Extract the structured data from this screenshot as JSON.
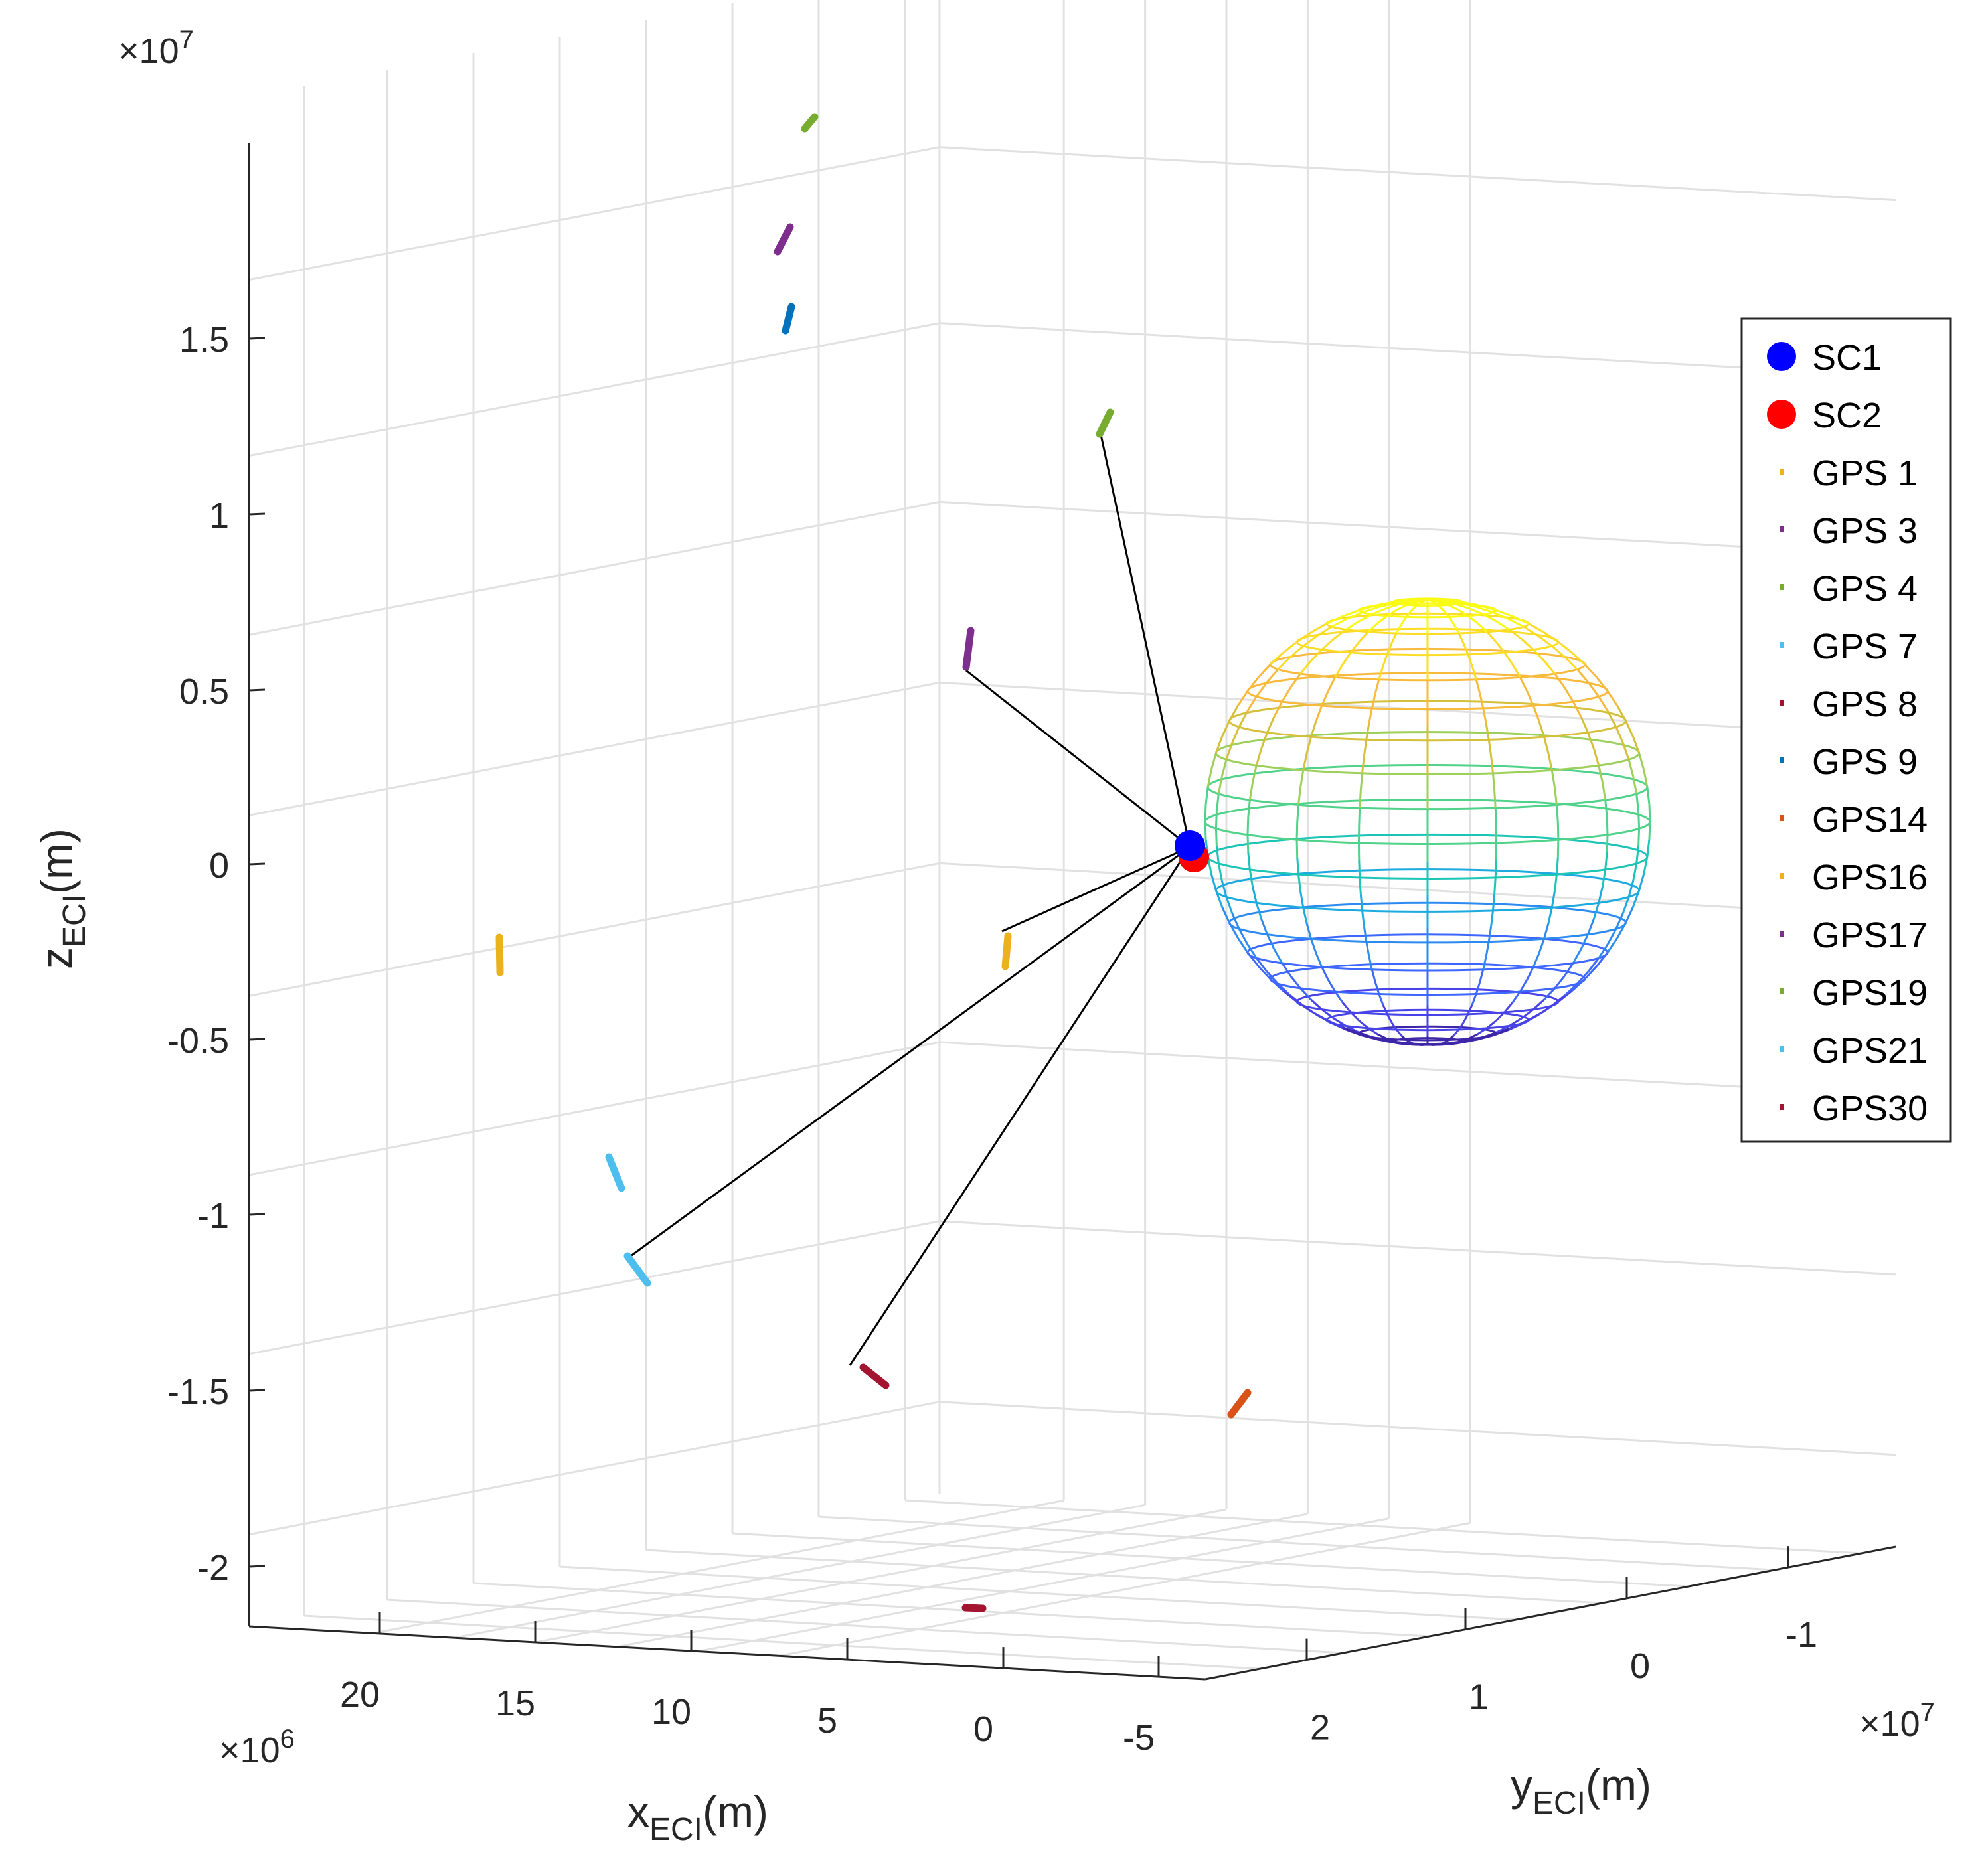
{
  "chart_data": {
    "type": "scatter3d",
    "title": "",
    "xlabel": {
      "base": "x",
      "sub": "ECI",
      "unit": "(m)"
    },
    "ylabel": {
      "base": "y",
      "sub": "ECI",
      "unit": "(m)"
    },
    "zlabel": {
      "base": "z",
      "sub": "ECI",
      "unit": "(m)"
    },
    "x_multiplier": {
      "base": "×10",
      "exp": "6"
    },
    "y_multiplier": {
      "base": "×10",
      "exp": "7"
    },
    "z_multiplier": {
      "base": "×10",
      "exp": "7"
    },
    "x_ticks": [
      "20",
      "15",
      "10",
      "5",
      "0",
      "-5"
    ],
    "y_ticks": [
      "2",
      "1",
      "0",
      "-1"
    ],
    "z_ticks": [
      "1.5",
      "1",
      "0.5",
      "0",
      "-0.5",
      "-1",
      "-1.5",
      "-2"
    ],
    "grid": true,
    "legend_position": "right",
    "earth_sphere": {
      "colormap": "parula"
    },
    "legend": [
      {
        "label": "SC1",
        "color": "#0000ff",
        "marker": "dot-large"
      },
      {
        "label": "SC2",
        "color": "#ff0000",
        "marker": "dot-large"
      },
      {
        "label": "GPS 1",
        "color": "#EDB120",
        "marker": "dot-small"
      },
      {
        "label": "GPS 3",
        "color": "#7E2F8E",
        "marker": "dot-small"
      },
      {
        "label": "GPS 4",
        "color": "#77AC30",
        "marker": "dot-small"
      },
      {
        "label": "GPS 7",
        "color": "#4DBEEE",
        "marker": "dot-small"
      },
      {
        "label": "GPS 8",
        "color": "#A2142F",
        "marker": "dot-small"
      },
      {
        "label": "GPS 9",
        "color": "#0072BD",
        "marker": "dot-small"
      },
      {
        "label": "GPS14",
        "color": "#D95319",
        "marker": "dot-small"
      },
      {
        "label": "GPS16",
        "color": "#EDB120",
        "marker": "dot-small"
      },
      {
        "label": "GPS17",
        "color": "#7E2F8E",
        "marker": "dot-small"
      },
      {
        "label": "GPS19",
        "color": "#77AC30",
        "marker": "dot-small"
      },
      {
        "label": "GPS21",
        "color": "#4DBEEE",
        "marker": "dot-small"
      },
      {
        "label": "GPS30",
        "color": "#A2142F",
        "marker": "dot-small"
      }
    ],
    "tracks": [
      {
        "color": "#77AC30",
        "kind": "track"
      },
      {
        "color": "#7E2F8E",
        "kind": "track"
      },
      {
        "color": "#0072BD",
        "kind": "track"
      },
      {
        "color": "#77AC30",
        "kind": "track"
      },
      {
        "color": "#7E2F8E",
        "kind": "track"
      },
      {
        "color": "#EDB120",
        "kind": "track"
      },
      {
        "color": "#EDB120",
        "kind": "track"
      },
      {
        "color": "#4DBEEE",
        "kind": "track"
      },
      {
        "color": "#4DBEEE",
        "kind": "track"
      },
      {
        "color": "#A2142F",
        "kind": "track"
      },
      {
        "color": "#D95319",
        "kind": "track"
      },
      {
        "color": "#A2142F",
        "kind": "track"
      }
    ]
  }
}
